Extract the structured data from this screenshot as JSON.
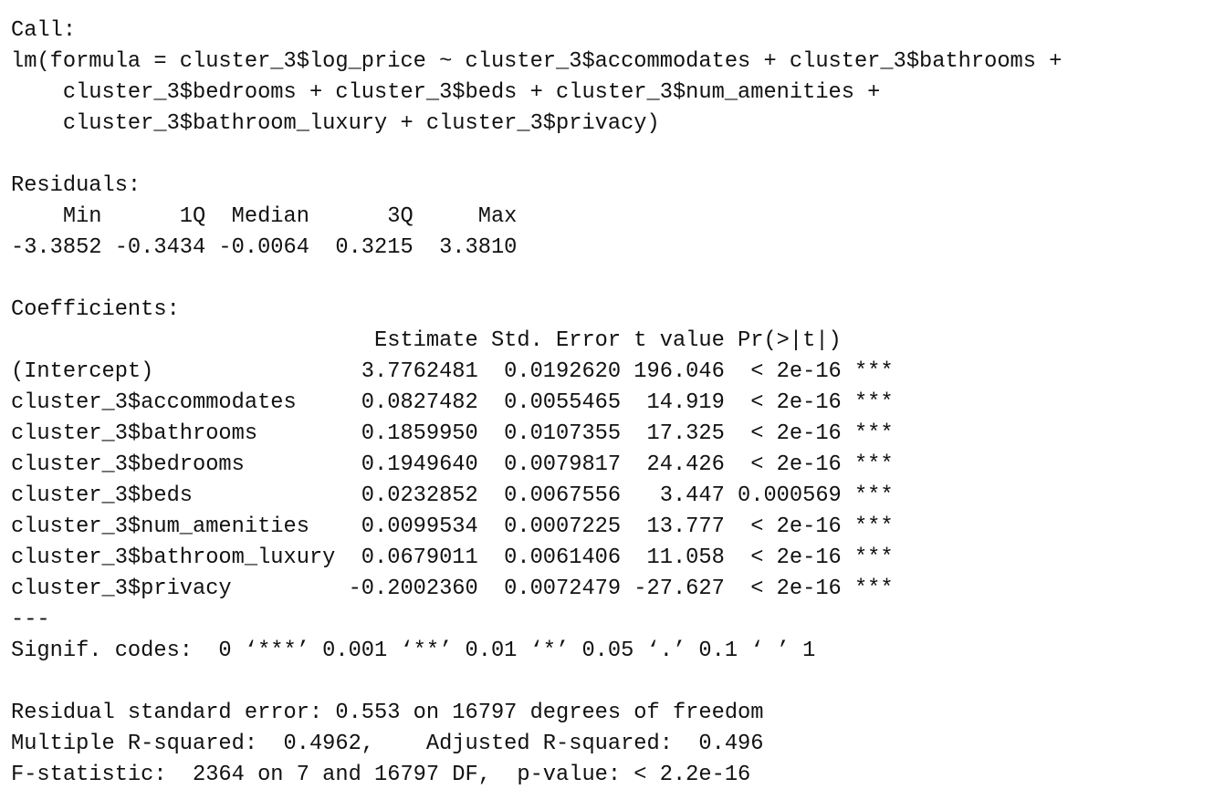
{
  "call": {
    "label": "Call:",
    "lines": [
      "lm(formula = cluster_3$log_price ~ cluster_3$accommodates + cluster_3$bathrooms + ",
      "    cluster_3$bedrooms + cluster_3$beds + cluster_3$num_amenities + ",
      "    cluster_3$bathroom_luxury + cluster_3$privacy)"
    ]
  },
  "residuals": {
    "label": "Residuals:",
    "header": "    Min      1Q  Median      3Q     Max ",
    "values": "-3.3852 -0.3434 -0.0064  0.3215  3.3810 "
  },
  "coefficients": {
    "label": "Coefficients:",
    "header": "                            Estimate Std. Error t value Pr(>|t|)    ",
    "rows": [
      "(Intercept)                3.7762481  0.0192620 196.046  < 2e-16 ***",
      "cluster_3$accommodates     0.0827482  0.0055465  14.919  < 2e-16 ***",
      "cluster_3$bathrooms        0.1859950  0.0107355  17.325  < 2e-16 ***",
      "cluster_3$bedrooms         0.1949640  0.0079817  24.426  < 2e-16 ***",
      "cluster_3$beds             0.0232852  0.0067556   3.447 0.000569 ***",
      "cluster_3$num_amenities    0.0099534  0.0007225  13.777  < 2e-16 ***",
      "cluster_3$bathroom_luxury  0.0679011  0.0061406  11.058  < 2e-16 ***",
      "cluster_3$privacy         -0.2002360  0.0072479 -27.627  < 2e-16 ***"
    ],
    "separator": "---",
    "signif_codes": "Signif. codes:  0 ‘***’ 0.001 ‘**’ 0.01 ‘*’ 0.05 ‘.’ 0.1 ‘ ’ 1"
  },
  "summary": [
    "Residual standard error: 0.553 on 16797 degrees of freedom",
    "Multiple R-squared:  0.4962,\tAdjusted R-squared:  0.496 ",
    "F-statistic:  2364 on 7 and 16797 DF,  p-value: < 2.2e-16"
  ]
}
